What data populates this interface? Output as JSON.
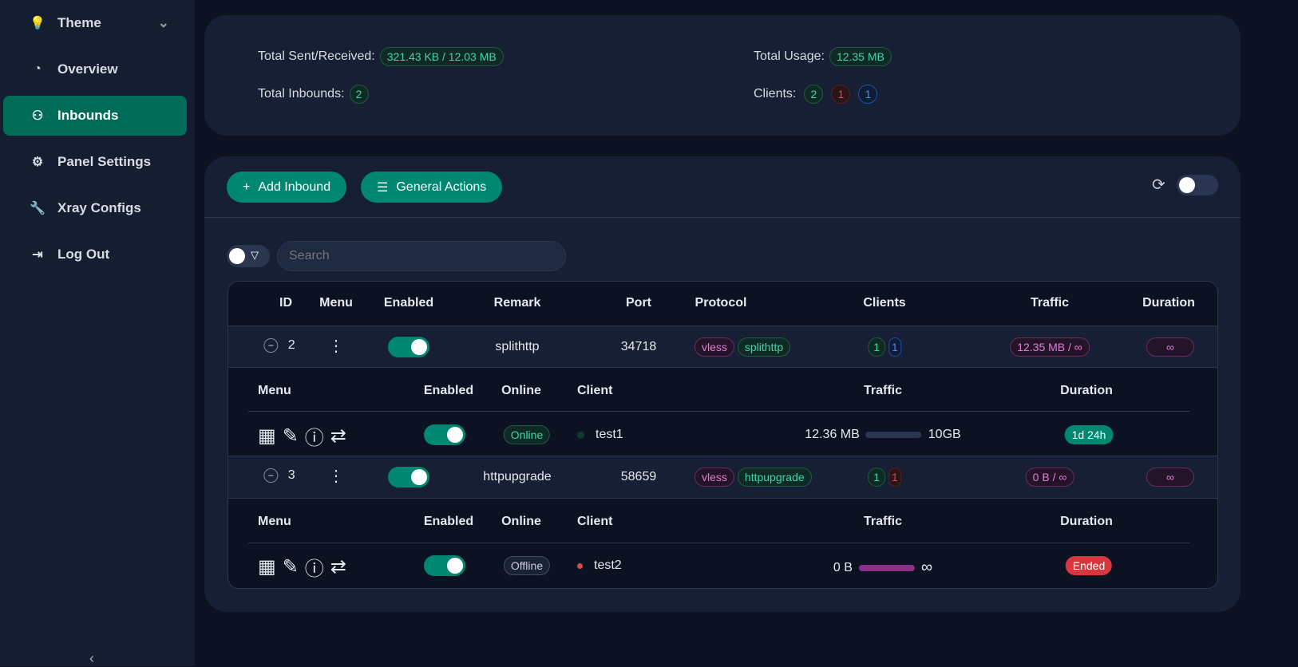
{
  "sidebar": {
    "items": [
      {
        "label": "Theme",
        "icon": "bulb-icon"
      },
      {
        "label": "Overview",
        "icon": "dashboard-icon"
      },
      {
        "label": "Inbounds",
        "icon": "user-icon",
        "active": true
      },
      {
        "label": "Panel Settings",
        "icon": "gear-icon"
      },
      {
        "label": "Xray Configs",
        "icon": "wrench-icon"
      },
      {
        "label": "Log Out",
        "icon": "logout-icon"
      }
    ]
  },
  "stats": {
    "sent_label": "Total Sent/Received:",
    "sent_value": "321.43 KB / 12.03 MB",
    "usage_label": "Total Usage:",
    "usage_value": "12.35 MB",
    "inbounds_label": "Total Inbounds:",
    "inbounds_value": "2",
    "clients_label": "Clients:",
    "clients_values": [
      "2",
      "1",
      "1"
    ]
  },
  "toolbar": {
    "add_label": "Add Inbound",
    "general_label": "General Actions",
    "search_placeholder": "Search"
  },
  "table": {
    "headers": [
      "ID",
      "Menu",
      "Enabled",
      "Remark",
      "Port",
      "Protocol",
      "Clients",
      "Traffic",
      "Duration"
    ],
    "sub_headers": [
      "Menu",
      "Enabled",
      "Online",
      "Client",
      "Traffic",
      "Duration"
    ],
    "rows": [
      {
        "id": "2",
        "enabled": true,
        "remark": "splithttp",
        "port": "34718",
        "protocol": "vless",
        "transport": "splithttp",
        "clients": [
          "1",
          "1"
        ],
        "traffic": "12.35 MB / ∞",
        "duration": "∞",
        "client": {
          "enabled": true,
          "online": "Online",
          "name": "test1",
          "used": "12.36 MB",
          "total": "10GB",
          "duration": "1d 24h"
        }
      },
      {
        "id": "3",
        "enabled": true,
        "remark": "httpupgrade",
        "port": "58659",
        "protocol": "vless",
        "transport": "httpupgrade",
        "clients": [
          "1",
          "1"
        ],
        "traffic": "0 B / ∞",
        "duration": "∞",
        "client": {
          "enabled": true,
          "online": "Offline",
          "name": "test2",
          "used": "0 B",
          "total": "∞",
          "duration": "Ended"
        }
      }
    ]
  },
  "colors": {
    "accent": "#008771",
    "danger": "#d9363e"
  }
}
